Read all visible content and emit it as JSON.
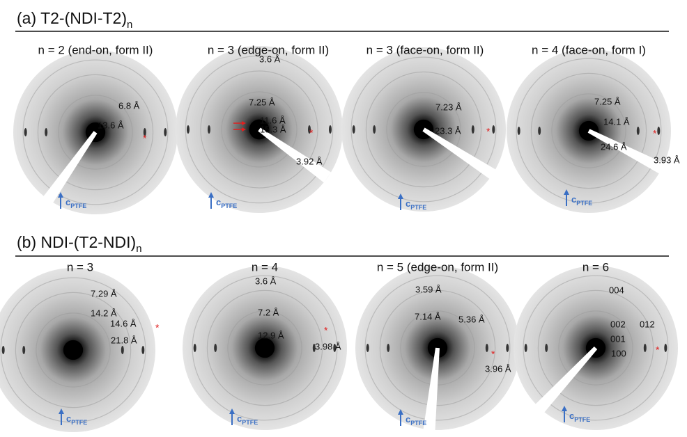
{
  "sections": [
    {
      "title": {
        "text": "(a) T2-(NDI-T2)",
        "subscript": "n"
      },
      "panels": [
        {
          "label": "n = 2 (end-on, form II)",
          "annotations": [
            "6.8 Å",
            "13.6 Å",
            "*"
          ]
        },
        {
          "label": "n = 3 (edge-on, form II)",
          "annotations": [
            "3.6 Å",
            "7.25 Å",
            "11.6 Å",
            "15.3 Å",
            "*",
            "3.92 Å"
          ]
        },
        {
          "label": "n = 3 (face-on, form II)",
          "annotations": [
            "7.23 Å",
            "23.3 Å",
            "*"
          ]
        },
        {
          "label": "n = 4 (face-on, form I)",
          "annotations": [
            "7.25 Å",
            "14.1 Å",
            "*",
            "24.6 Å",
            "3.93 Å"
          ]
        }
      ]
    },
    {
      "title": {
        "text": "(b) NDI-(T2-NDI)",
        "subscript": "n"
      },
      "panels": [
        {
          "label": "n = 3",
          "annotations": [
            "7.29 Å",
            "14.2 Å",
            "14.6 Å",
            "*",
            "21.8 Å"
          ]
        },
        {
          "label": "n = 4",
          "annotations": [
            "3.6 Å",
            "7.2 Å",
            "12.9 Å",
            "*",
            "3.98 Å"
          ]
        },
        {
          "label": "n = 5 (edge-on, form II)",
          "annotations": [
            "3.59 Å",
            "7.14 Å",
            "5.36 Å",
            "*",
            "3.96 Å"
          ]
        },
        {
          "label": "n = 6",
          "annotations": [
            "004",
            "002",
            "012",
            "001",
            "100",
            "*"
          ]
        }
      ]
    }
  ],
  "axis_label": {
    "text": "c",
    "subscript": "PTFE"
  }
}
